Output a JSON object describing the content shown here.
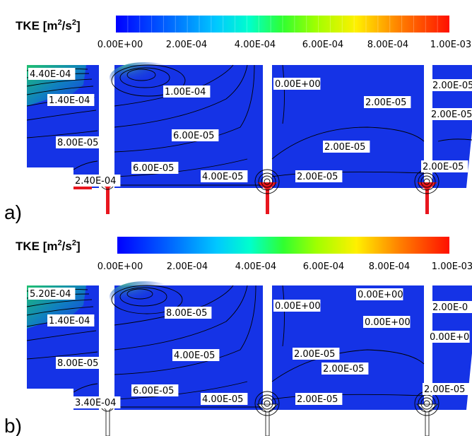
{
  "panels": [
    {
      "id": "a",
      "letter": "a)",
      "legend": {
        "title": "TKE [m",
        "title_sup": "2",
        "title_mid": "/s",
        "title_sup2": "2",
        "title_end": "]",
        "ticks": [
          "0.00E+00",
          "2.00E-04",
          "4.00E-04",
          "6.00E-04",
          "8.00E-04",
          "1.00E-03"
        ]
      },
      "labels": [
        "4.40E-04",
        "1.40E-04",
        "8.00E-05",
        "2.40E-04",
        "1.00E-04",
        "6.00E-05",
        "6.00E-05",
        "4.00E-05",
        "0.00E+00",
        "2.00E-05",
        "2.00E-05",
        "2.00E-05",
        "2.00E-05",
        "2.00E-05",
        "2.00E-05"
      ]
    },
    {
      "id": "b",
      "letter": "b)",
      "legend": {
        "title": "TKE [m",
        "title_sup": "2",
        "title_mid": "/s",
        "title_sup2": "2",
        "title_end": "]",
        "ticks": [
          "0.00E+00",
          "2.00E-04",
          "4.00E-04",
          "6.00E-04",
          "8.00E-04",
          "1.00E-03"
        ]
      },
      "labels": [
        "5.20E-04",
        "1.40E-04",
        "8.00E-05",
        "3.40E-04",
        "8.00E-05",
        "4.00E-05",
        "6.00E-05",
        "4.00E-05",
        "0.00E+00",
        "0.00E+00",
        "0.00E+00",
        "2.00E-05",
        "2.00E-05",
        "2.00E-05",
        "2.00E-0",
        "0.00E+0",
        "2.00E-05"
      ]
    }
  ],
  "colors": {
    "field": "#1533e6",
    "colormap": [
      "#0000ff",
      "#0050ff",
      "#00a0ff",
      "#00e0ff",
      "#00ffb0",
      "#20ff40",
      "#80ff00",
      "#d0ff00",
      "#ffd000",
      "#ff7000",
      "#ff2000"
    ],
    "fin_a": "#e8161e",
    "fin_b": "#ffffff"
  }
}
